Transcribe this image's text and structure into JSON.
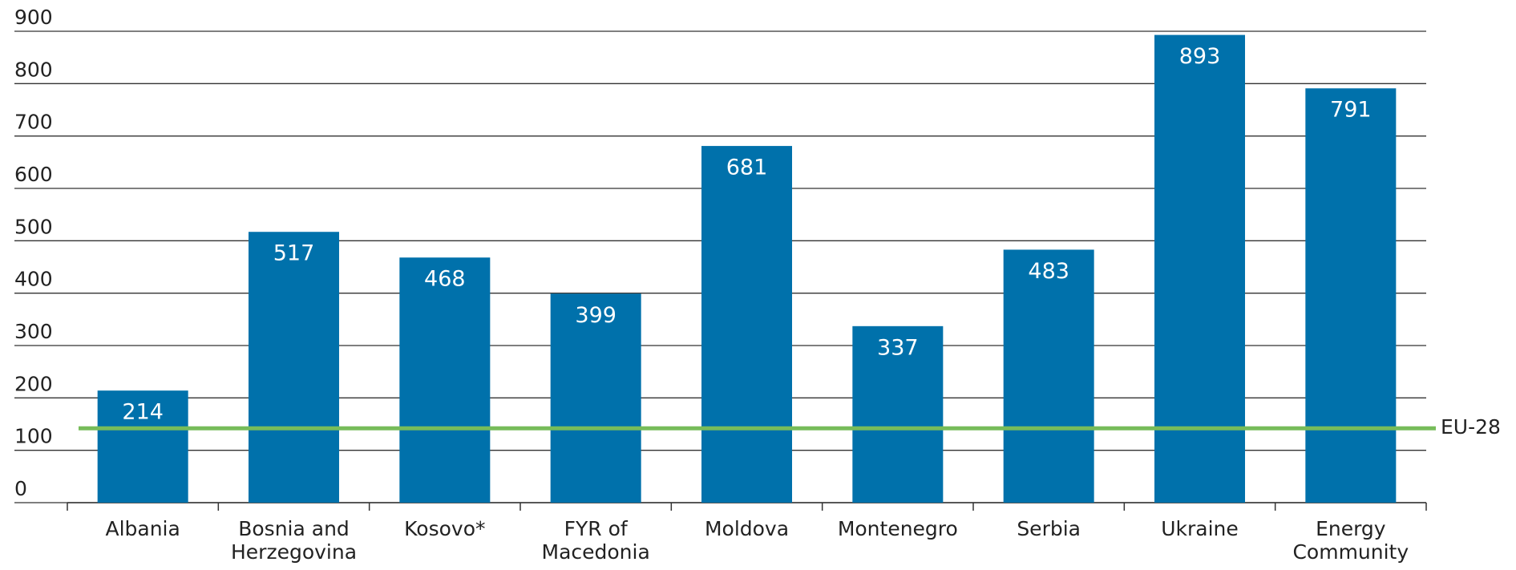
{
  "chart_data": {
    "type": "bar",
    "categories": [
      "Albania",
      "Bosnia and Herzegovina",
      "Kosovo*",
      "FYR of Macedonia",
      "Moldova",
      "Montenegro",
      "Serbia",
      "Ukraine",
      "Energy Community"
    ],
    "values": [
      214,
      517,
      468,
      399,
      681,
      337,
      483,
      893,
      791
    ],
    "color": "#0071ab",
    "ylim": [
      0,
      900
    ],
    "yticks": [
      0,
      100,
      200,
      300,
      400,
      500,
      600,
      700,
      800,
      900
    ],
    "grid": true,
    "reference_line": {
      "value": 142,
      "label": "EU-28",
      "color": "#77bc5a"
    }
  }
}
